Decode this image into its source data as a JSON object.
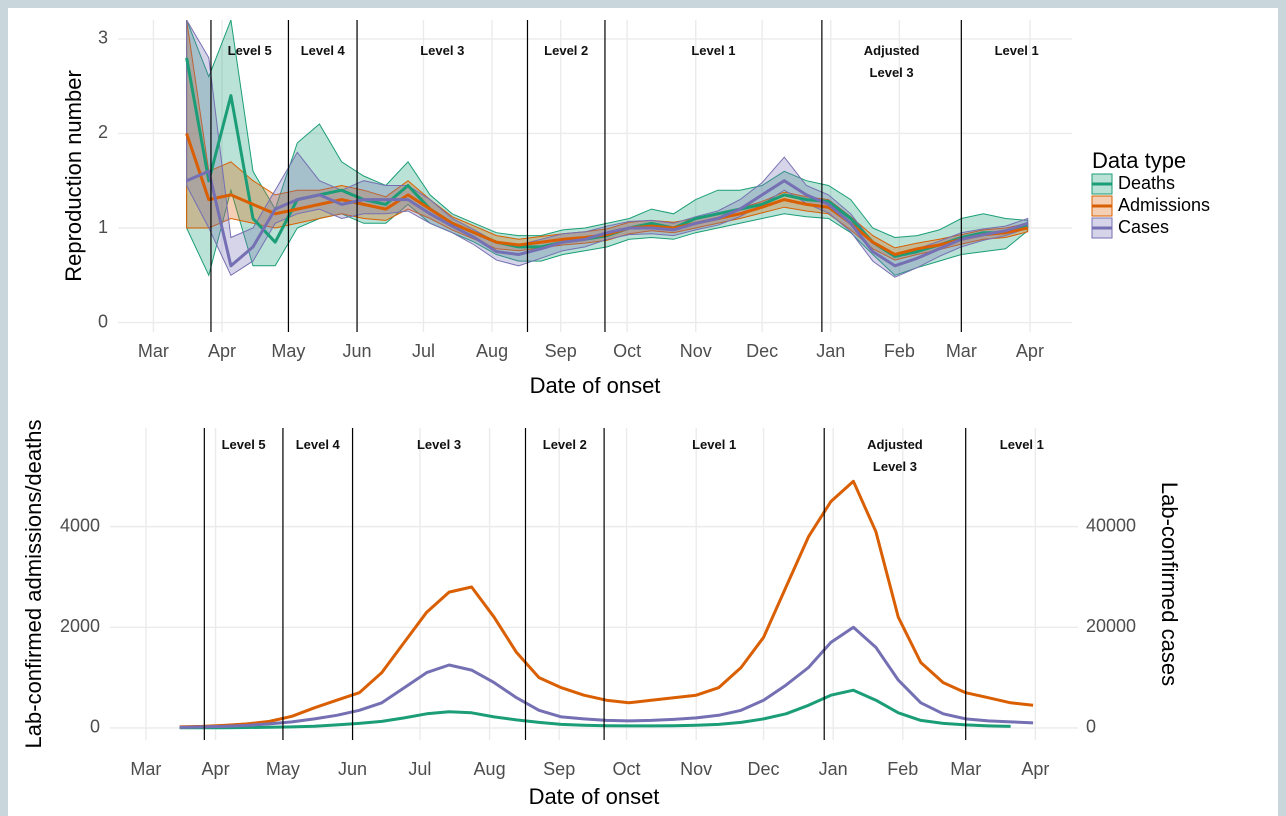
{
  "chart_data": [
    {
      "type": "line",
      "ylabel": "Reproduction number",
      "xlabel": "Date of onset",
      "xlim": [
        -16,
        415
      ],
      "ylim": [
        -0.1,
        3.2
      ],
      "yticks": [
        0,
        1,
        2,
        3
      ],
      "grid": true,
      "xticks": [
        {
          "value": 0,
          "label": "Mar"
        },
        {
          "value": 31,
          "label": "Apr"
        },
        {
          "value": 61,
          "label": "May"
        },
        {
          "value": 92,
          "label": "Jun"
        },
        {
          "value": 122,
          "label": "Jul"
        },
        {
          "value": 153,
          "label": "Aug"
        },
        {
          "value": 184,
          "label": "Sep"
        },
        {
          "value": 214,
          "label": "Oct"
        },
        {
          "value": 245,
          "label": "Nov"
        },
        {
          "value": 275,
          "label": "Dec"
        },
        {
          "value": 306,
          "label": "Jan"
        },
        {
          "value": 337,
          "label": "Feb"
        },
        {
          "value": 365,
          "label": "Mar"
        },
        {
          "value": 396,
          "label": "Apr"
        }
      ],
      "phases": [
        {
          "label": "Level 5",
          "start": 26
        },
        {
          "label": "Level 4",
          "start": 61
        },
        {
          "label": "Level 3",
          "start": 92
        },
        {
          "label": "Level 2",
          "start": 169
        },
        {
          "label": "Level 1",
          "start": 204
        },
        {
          "label": "Adjusted Level 3",
          "start": 302
        },
        {
          "label": "Level 1",
          "start": 365
        }
      ],
      "legend_title": "Data type",
      "legend": "right",
      "x": [
        15,
        25,
        35,
        45,
        55,
        65,
        75,
        85,
        95,
        105,
        115,
        125,
        135,
        145,
        155,
        165,
        175,
        185,
        195,
        205,
        215,
        225,
        235,
        245,
        255,
        265,
        275,
        285,
        295,
        305,
        315,
        325,
        335,
        345,
        355,
        365,
        375,
        385,
        395
      ],
      "series": [
        {
          "name": "Deaths",
          "color": "#1b9e77",
          "values": [
            2.8,
            1.5,
            2.4,
            1.1,
            0.85,
            1.3,
            1.35,
            1.4,
            1.3,
            1.25,
            1.45,
            1.2,
            1.05,
            0.95,
            0.85,
            0.8,
            0.8,
            0.85,
            0.88,
            0.92,
            1.0,
            1.05,
            1.0,
            1.1,
            1.15,
            1.2,
            1.25,
            1.35,
            1.3,
            1.28,
            1.1,
            0.85,
            0.7,
            0.75,
            0.82,
            0.9,
            0.95,
            0.95,
            1.02
          ],
          "lower": [
            1.0,
            0.5,
            1.4,
            0.6,
            0.6,
            1.0,
            1.1,
            1.15,
            1.05,
            1.05,
            1.25,
            1.05,
            0.95,
            0.85,
            0.72,
            0.65,
            0.65,
            0.72,
            0.76,
            0.8,
            0.88,
            0.9,
            0.88,
            0.95,
            1.0,
            1.05,
            1.1,
            1.15,
            1.12,
            1.1,
            0.95,
            0.72,
            0.5,
            0.58,
            0.65,
            0.72,
            0.75,
            0.78,
            0.97
          ],
          "upper": [
            3.2,
            2.6,
            3.2,
            1.6,
            1.2,
            1.9,
            2.1,
            1.7,
            1.55,
            1.45,
            1.7,
            1.35,
            1.15,
            1.05,
            0.95,
            0.92,
            0.92,
            0.98,
            1.0,
            1.05,
            1.1,
            1.2,
            1.15,
            1.3,
            1.4,
            1.4,
            1.45,
            1.6,
            1.5,
            1.45,
            1.3,
            1.0,
            0.9,
            0.92,
            0.98,
            1.1,
            1.15,
            1.1,
            1.08
          ]
        },
        {
          "name": "Admissions",
          "color": "#d95f02",
          "values": [
            2.0,
            1.3,
            1.35,
            1.25,
            1.15,
            1.2,
            1.25,
            1.3,
            1.25,
            1.2,
            1.35,
            1.2,
            1.05,
            0.95,
            0.85,
            0.82,
            0.85,
            0.88,
            0.9,
            0.93,
            1.0,
            1.02,
            1.0,
            1.05,
            1.1,
            1.15,
            1.22,
            1.3,
            1.25,
            1.22,
            1.05,
            0.85,
            0.72,
            0.78,
            0.82,
            0.88,
            0.93,
            0.95,
            1.0
          ],
          "lower": [
            1.0,
            1.0,
            1.1,
            1.05,
            1.0,
            1.05,
            1.1,
            1.15,
            1.1,
            1.08,
            1.2,
            1.1,
            0.98,
            0.88,
            0.78,
            0.76,
            0.79,
            0.82,
            0.84,
            0.87,
            0.94,
            0.97,
            0.95,
            1.0,
            1.05,
            1.1,
            1.16,
            1.22,
            1.18,
            1.15,
            0.98,
            0.78,
            0.66,
            0.72,
            0.77,
            0.83,
            0.88,
            0.9,
            0.96
          ],
          "upper": [
            3.2,
            1.6,
            1.7,
            1.5,
            1.35,
            1.4,
            1.4,
            1.45,
            1.4,
            1.33,
            1.5,
            1.3,
            1.12,
            1.02,
            0.92,
            0.88,
            0.91,
            0.94,
            0.96,
            0.99,
            1.06,
            1.08,
            1.06,
            1.1,
            1.16,
            1.21,
            1.28,
            1.38,
            1.33,
            1.3,
            1.12,
            0.92,
            0.79,
            0.84,
            0.88,
            0.93,
            0.98,
            1.0,
            1.05
          ]
        },
        {
          "name": "Cases",
          "color": "#7570b3",
          "values": [
            1.5,
            1.6,
            0.6,
            0.8,
            1.2,
            1.3,
            1.35,
            1.25,
            1.3,
            1.3,
            1.3,
            1.15,
            1.02,
            0.9,
            0.75,
            0.72,
            0.78,
            0.85,
            0.88,
            0.95,
            1.0,
            1.0,
            0.98,
            1.05,
            1.1,
            1.2,
            1.35,
            1.5,
            1.35,
            1.25,
            1.05,
            0.75,
            0.6,
            0.68,
            0.78,
            0.88,
            0.93,
            0.97,
            1.05
          ],
          "lower": [
            1.45,
            1.0,
            0.5,
            0.65,
            1.05,
            1.15,
            1.2,
            1.1,
            1.15,
            1.15,
            1.18,
            1.05,
            0.95,
            0.82,
            0.66,
            0.6,
            0.68,
            0.76,
            0.8,
            0.88,
            0.93,
            0.94,
            0.92,
            0.98,
            1.03,
            1.12,
            1.25,
            1.4,
            1.26,
            1.16,
            0.96,
            0.65,
            0.48,
            0.58,
            0.7,
            0.8,
            0.87,
            0.92,
            1.0
          ],
          "upper": [
            3.2,
            2.8,
            0.9,
            1.0,
            1.4,
            1.8,
            1.5,
            1.4,
            1.5,
            1.45,
            1.45,
            1.3,
            1.1,
            0.98,
            0.85,
            0.82,
            0.88,
            0.94,
            0.96,
            1.02,
            1.07,
            1.08,
            1.05,
            1.12,
            1.18,
            1.3,
            1.48,
            1.75,
            1.45,
            1.35,
            1.15,
            0.85,
            0.72,
            0.78,
            0.86,
            0.95,
            0.99,
            1.02,
            1.1
          ]
        }
      ]
    },
    {
      "type": "line",
      "ylabel": "Lab-confirmed admissions/deaths",
      "y2label": "Lab-confirmed cases",
      "xlabel": "Date of onset",
      "xlim": [
        -16,
        415
      ],
      "ylim": [
        -240,
        5960
      ],
      "yticks": [
        0,
        2000,
        4000
      ],
      "y2lim": [
        -2400,
        59600
      ],
      "y2ticks": [
        0,
        20000,
        40000
      ],
      "grid": true,
      "xticks": [
        {
          "value": 0,
          "label": "Mar"
        },
        {
          "value": 31,
          "label": "Apr"
        },
        {
          "value": 61,
          "label": "May"
        },
        {
          "value": 92,
          "label": "Jun"
        },
        {
          "value": 122,
          "label": "Jul"
        },
        {
          "value": 153,
          "label": "Aug"
        },
        {
          "value": 184,
          "label": "Sep"
        },
        {
          "value": 214,
          "label": "Oct"
        },
        {
          "value": 245,
          "label": "Nov"
        },
        {
          "value": 275,
          "label": "Dec"
        },
        {
          "value": 306,
          "label": "Jan"
        },
        {
          "value": 337,
          "label": "Feb"
        },
        {
          "value": 365,
          "label": "Mar"
        },
        {
          "value": 396,
          "label": "Apr"
        }
      ],
      "phases": [
        {
          "label": "Level 5",
          "start": 26
        },
        {
          "label": "Level 4",
          "start": 61
        },
        {
          "label": "Level 3",
          "start": 92
        },
        {
          "label": "Level 2",
          "start": 169
        },
        {
          "label": "Level 1",
          "start": 204
        },
        {
          "label": "Adjusted Level 3",
          "start": 302
        },
        {
          "label": "Level 1",
          "start": 365
        }
      ],
      "x": [
        15,
        25,
        35,
        45,
        55,
        65,
        75,
        85,
        95,
        105,
        115,
        125,
        135,
        145,
        155,
        165,
        175,
        185,
        195,
        205,
        215,
        225,
        235,
        245,
        255,
        265,
        275,
        285,
        295,
        305,
        315,
        325,
        335,
        345,
        355,
        365,
        375,
        385,
        395
      ],
      "series": [
        {
          "name": "Admissions",
          "color": "#d95f02",
          "values": [
            20,
            30,
            50,
            80,
            130,
            230,
            400,
            550,
            700,
            1100,
            1700,
            2300,
            2700,
            2800,
            2200,
            1500,
            1000,
            800,
            650,
            550,
            500,
            550,
            600,
            650,
            800,
            1200,
            1800,
            2800,
            3800,
            4500,
            4900,
            3900,
            2200,
            1300,
            900,
            700,
            600,
            500,
            450
          ]
        },
        {
          "name": "Deaths",
          "color": "#1b9e77",
          "values": [
            2,
            3,
            5,
            8,
            12,
            20,
            35,
            60,
            90,
            130,
            200,
            280,
            320,
            300,
            220,
            160,
            110,
            70,
            55,
            45,
            40,
            40,
            45,
            55,
            70,
            110,
            180,
            280,
            450,
            650,
            750,
            550,
            300,
            150,
            90,
            60,
            40,
            30,
            null
          ]
        },
        {
          "name": "Cases",
          "color": "#7570b3",
          "axis": "y2",
          "values": [
            100,
            200,
            300,
            500,
            800,
            1200,
            1800,
            2500,
            3500,
            5000,
            8000,
            11000,
            12500,
            11500,
            9000,
            6000,
            3500,
            2200,
            1800,
            1500,
            1400,
            1500,
            1700,
            2000,
            2500,
            3500,
            5500,
            8500,
            12000,
            17000,
            20000,
            16000,
            9500,
            5000,
            2800,
            1800,
            1400,
            1200,
            1000
          ]
        }
      ]
    }
  ]
}
